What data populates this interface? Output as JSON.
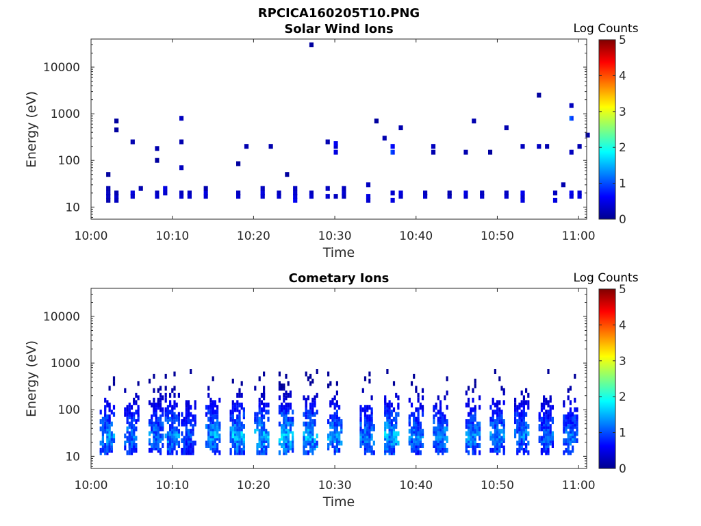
{
  "figure_title": "RPCICA160205T10.PNG",
  "chart_data": [
    {
      "type": "heatmap",
      "title": "Solar Wind Ions",
      "xlabel": "Time",
      "ylabel": "Energy (eV)",
      "x_ticks": [
        "10:00",
        "10:10",
        "10:20",
        "10:30",
        "10:40",
        "10:50",
        "11:00"
      ],
      "x_range": [
        "10:00",
        "11:01"
      ],
      "y_ticks": [
        "10",
        "100",
        "1000",
        "10000"
      ],
      "y_scale": "log",
      "y_range": [
        5.5,
        40000
      ],
      "colorbar": {
        "label": "Log Counts",
        "ticks": [
          "0",
          "1",
          "2",
          "3",
          "4",
          "5"
        ],
        "range": [
          0,
          5
        ],
        "colormap": "jet"
      },
      "grid": false,
      "cells_note_keyless": true,
      "cells": [
        [
          "10:02",
          20,
          0.3
        ],
        [
          "10:02",
          25,
          0.2
        ],
        [
          "10:02",
          50,
          0.1
        ],
        [
          "10:02",
          14,
          0.2
        ],
        [
          "10:02",
          17,
          0.3
        ],
        [
          "10:03",
          17,
          0.4
        ],
        [
          "10:03",
          14,
          0.3
        ],
        [
          "10:03",
          20,
          0.2
        ],
        [
          "10:03",
          450,
          0.1
        ],
        [
          "10:03",
          700,
          0.1
        ],
        [
          "10:05",
          20,
          0.5
        ],
        [
          "10:05",
          17,
          0.4
        ],
        [
          "10:05",
          250,
          0.2
        ],
        [
          "10:06",
          25,
          0.2
        ],
        [
          "10:08",
          20,
          0.3
        ],
        [
          "10:08",
          17,
          0.4
        ],
        [
          "10:08",
          180,
          0.2
        ],
        [
          "10:08",
          100,
          0.1
        ],
        [
          "10:09",
          25,
          0.5
        ],
        [
          "10:09",
          20,
          0.4
        ],
        [
          "10:11",
          17,
          0.4
        ],
        [
          "10:11",
          20,
          0.3
        ],
        [
          "10:11",
          800,
          0.3
        ],
        [
          "10:11",
          250,
          0.2
        ],
        [
          "10:11",
          70,
          0.3
        ],
        [
          "10:12",
          20,
          0.3
        ],
        [
          "10:12",
          17,
          0.4
        ],
        [
          "10:14",
          17,
          0.4
        ],
        [
          "10:14",
          20,
          0.5
        ],
        [
          "10:14",
          25,
          0.2
        ],
        [
          "10:18",
          17,
          0.4
        ],
        [
          "10:18",
          20,
          0.3
        ],
        [
          "10:18",
          85,
          0.1
        ],
        [
          "10:19",
          200,
          0.2
        ],
        [
          "10:21",
          17,
          0.4
        ],
        [
          "10:21",
          20,
          0.5
        ],
        [
          "10:21",
          25,
          0.3
        ],
        [
          "10:22",
          200,
          0.2
        ],
        [
          "10:23",
          17,
          0.4
        ],
        [
          "10:23",
          20,
          0.3
        ],
        [
          "10:24",
          50,
          0.1
        ],
        [
          "10:25",
          14,
          0.6
        ],
        [
          "10:25",
          17,
          0.5
        ],
        [
          "10:25",
          20,
          0.4
        ],
        [
          "10:25",
          25,
          0.3
        ],
        [
          "10:27",
          20,
          0.3
        ],
        [
          "10:27",
          17,
          0.4
        ],
        [
          "10:27",
          30000,
          0.1
        ],
        [
          "10:29",
          17,
          0.4
        ],
        [
          "10:29",
          25,
          0.3
        ],
        [
          "10:29",
          250,
          0.2
        ],
        [
          "10:30",
          17,
          0.3
        ],
        [
          "10:30",
          200,
          0.4
        ],
        [
          "10:30",
          150,
          0.5
        ],
        [
          "10:30",
          230,
          0.6
        ],
        [
          "10:31",
          17,
          0.3
        ],
        [
          "10:31",
          20,
          0.4
        ],
        [
          "10:31",
          25,
          0.3
        ],
        [
          "10:34",
          14,
          0.4
        ],
        [
          "10:34",
          17,
          0.5
        ],
        [
          "10:34",
          30,
          0.3
        ],
        [
          "10:35",
          700,
          0.1
        ],
        [
          "10:36",
          300,
          0.2
        ],
        [
          "10:37",
          150,
          1.0
        ],
        [
          "10:37",
          200,
          0.7
        ],
        [
          "10:37",
          20,
          0.4
        ],
        [
          "10:37",
          14,
          0.5
        ],
        [
          "10:38",
          17,
          0.4
        ],
        [
          "10:38",
          20,
          0.5
        ],
        [
          "10:38",
          500,
          0.2
        ],
        [
          "10:41",
          17,
          0.4
        ],
        [
          "10:41",
          20,
          0.3
        ],
        [
          "10:42",
          200,
          0.3
        ],
        [
          "10:42",
          150,
          0.2
        ],
        [
          "10:44",
          17,
          0.3
        ],
        [
          "10:44",
          20,
          0.2
        ],
        [
          "10:46",
          17,
          0.4
        ],
        [
          "10:46",
          20,
          0.5
        ],
        [
          "10:46",
          150,
          0.2
        ],
        [
          "10:47",
          700,
          0.2
        ],
        [
          "10:48",
          17,
          0.4
        ],
        [
          "10:48",
          20,
          0.3
        ],
        [
          "10:49",
          150,
          0.1
        ],
        [
          "10:51",
          17,
          0.4
        ],
        [
          "10:51",
          20,
          0.3
        ],
        [
          "10:51",
          500,
          0.2
        ],
        [
          "10:53",
          17,
          0.4
        ],
        [
          "10:53",
          14,
          0.5
        ],
        [
          "10:53",
          20,
          0.6
        ],
        [
          "10:53",
          200,
          0.3
        ],
        [
          "10:55",
          200,
          0.3
        ],
        [
          "10:55",
          2500,
          0.1
        ],
        [
          "10:56",
          200,
          0.2
        ],
        [
          "10:57",
          14,
          0.5
        ],
        [
          "10:57",
          20,
          0.3
        ],
        [
          "10:58",
          30,
          0.2
        ],
        [
          "10:59",
          20,
          0.6
        ],
        [
          "10:59",
          17,
          0.5
        ],
        [
          "10:59",
          800,
          1.1
        ],
        [
          "10:59",
          1500,
          0.3
        ],
        [
          "10:59",
          150,
          0.3
        ],
        [
          "11:00",
          20,
          0.4
        ],
        [
          "11:00",
          17,
          0.5
        ],
        [
          "11:00",
          200,
          0.2
        ],
        [
          "11:01",
          350,
          0.2
        ]
      ]
    },
    {
      "type": "heatmap",
      "title": "Cometary Ions",
      "xlabel": "Time",
      "ylabel": "Energy (eV)",
      "x_ticks": [
        "10:00",
        "10:10",
        "10:20",
        "10:30",
        "10:40",
        "10:50",
        "11:00"
      ],
      "x_range": [
        "10:00",
        "11:01"
      ],
      "y_ticks": [
        "10",
        "100",
        "1000",
        "10000"
      ],
      "y_scale": "log",
      "y_range": [
        5.5,
        40000
      ],
      "colorbar": {
        "label": "Log Counts",
        "ticks": [
          "0",
          "1",
          "2",
          "3",
          "4",
          "5"
        ],
        "range": [
          0,
          5
        ],
        "colormap": "jet"
      },
      "grid": false,
      "bursts": [
        [
          "10:02",
          1.6
        ],
        [
          "10:05",
          1.5
        ],
        [
          "10:08",
          1.5
        ],
        [
          "10:10",
          1.6
        ],
        [
          "10:12",
          1.3
        ],
        [
          "10:15",
          1.7
        ],
        [
          "10:18",
          1.8
        ],
        [
          "10:21",
          1.8
        ],
        [
          "10:24",
          1.9
        ],
        [
          "10:27",
          1.8
        ],
        [
          "10:30",
          1.7
        ],
        [
          "10:34",
          1.5
        ],
        [
          "10:37",
          1.8
        ],
        [
          "10:40",
          1.5
        ],
        [
          "10:43",
          1.6
        ],
        [
          "10:47",
          1.6
        ],
        [
          "10:50",
          1.6
        ],
        [
          "10:53",
          1.5
        ],
        [
          "10:56",
          1.4
        ],
        [
          "10:59",
          1.5
        ]
      ]
    }
  ]
}
